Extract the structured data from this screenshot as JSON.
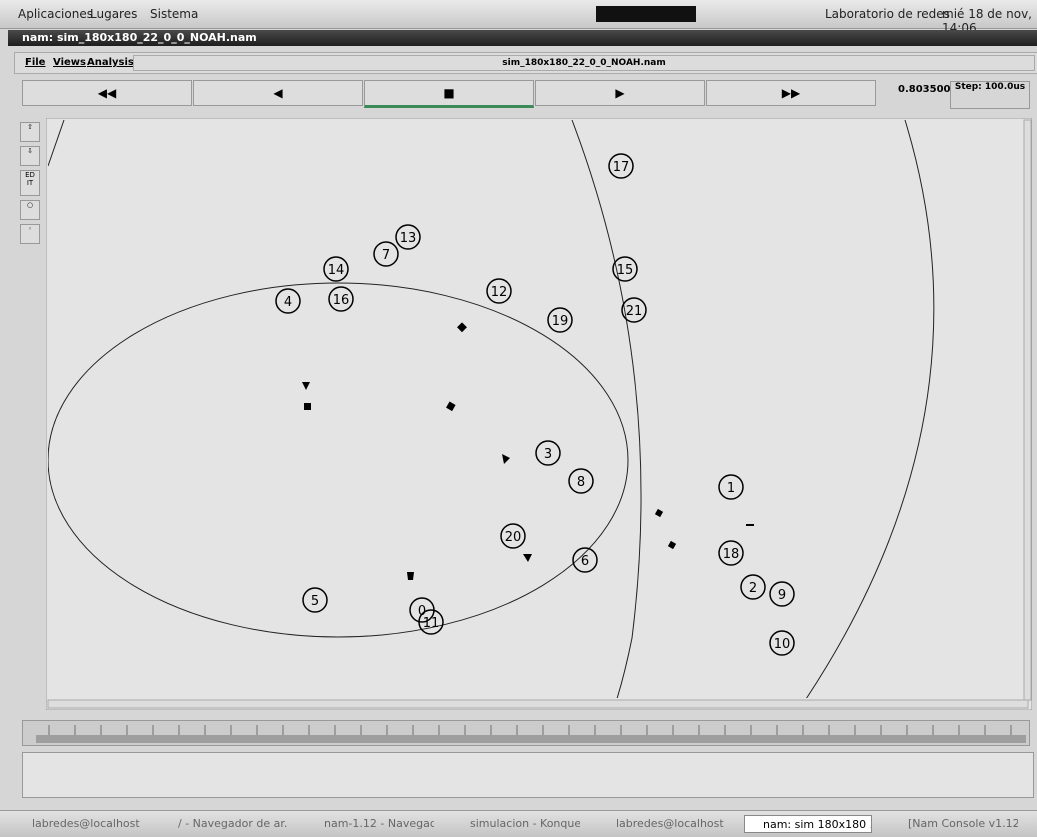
{
  "panel": {
    "menus": [
      "Aplicaciones",
      "Lugares",
      "Sistema"
    ],
    "user": "Laboratorio de redes",
    "clock": "mié 18 de nov, 14:06"
  },
  "window": {
    "title": "nam: sim_180x180_22_0_0_NOAH.nam",
    "menu": [
      "File",
      "Views",
      "Analysis"
    ],
    "filename": "sim_180x180_22_0_0_NOAH.nam",
    "time": "0.803500",
    "step": "Step: 100.0us",
    "edit": "ED IT"
  },
  "nodes": [
    "17",
    "13",
    "7",
    "14",
    "15",
    "4",
    "16",
    "12",
    "21",
    "19",
    "3",
    "8",
    "1",
    "20",
    "6",
    "18",
    "2",
    "9",
    "5",
    "0",
    "11",
    "10"
  ],
  "taskbar": [
    "labredes@localhost",
    "/ - Navegador de ar...",
    "nam-1.12 - Navegad...",
    "simulacion - Konque...",
    "labredes@localhost",
    "nam: sim 180x180 ...",
    "[Nam Console v1.12]"
  ]
}
